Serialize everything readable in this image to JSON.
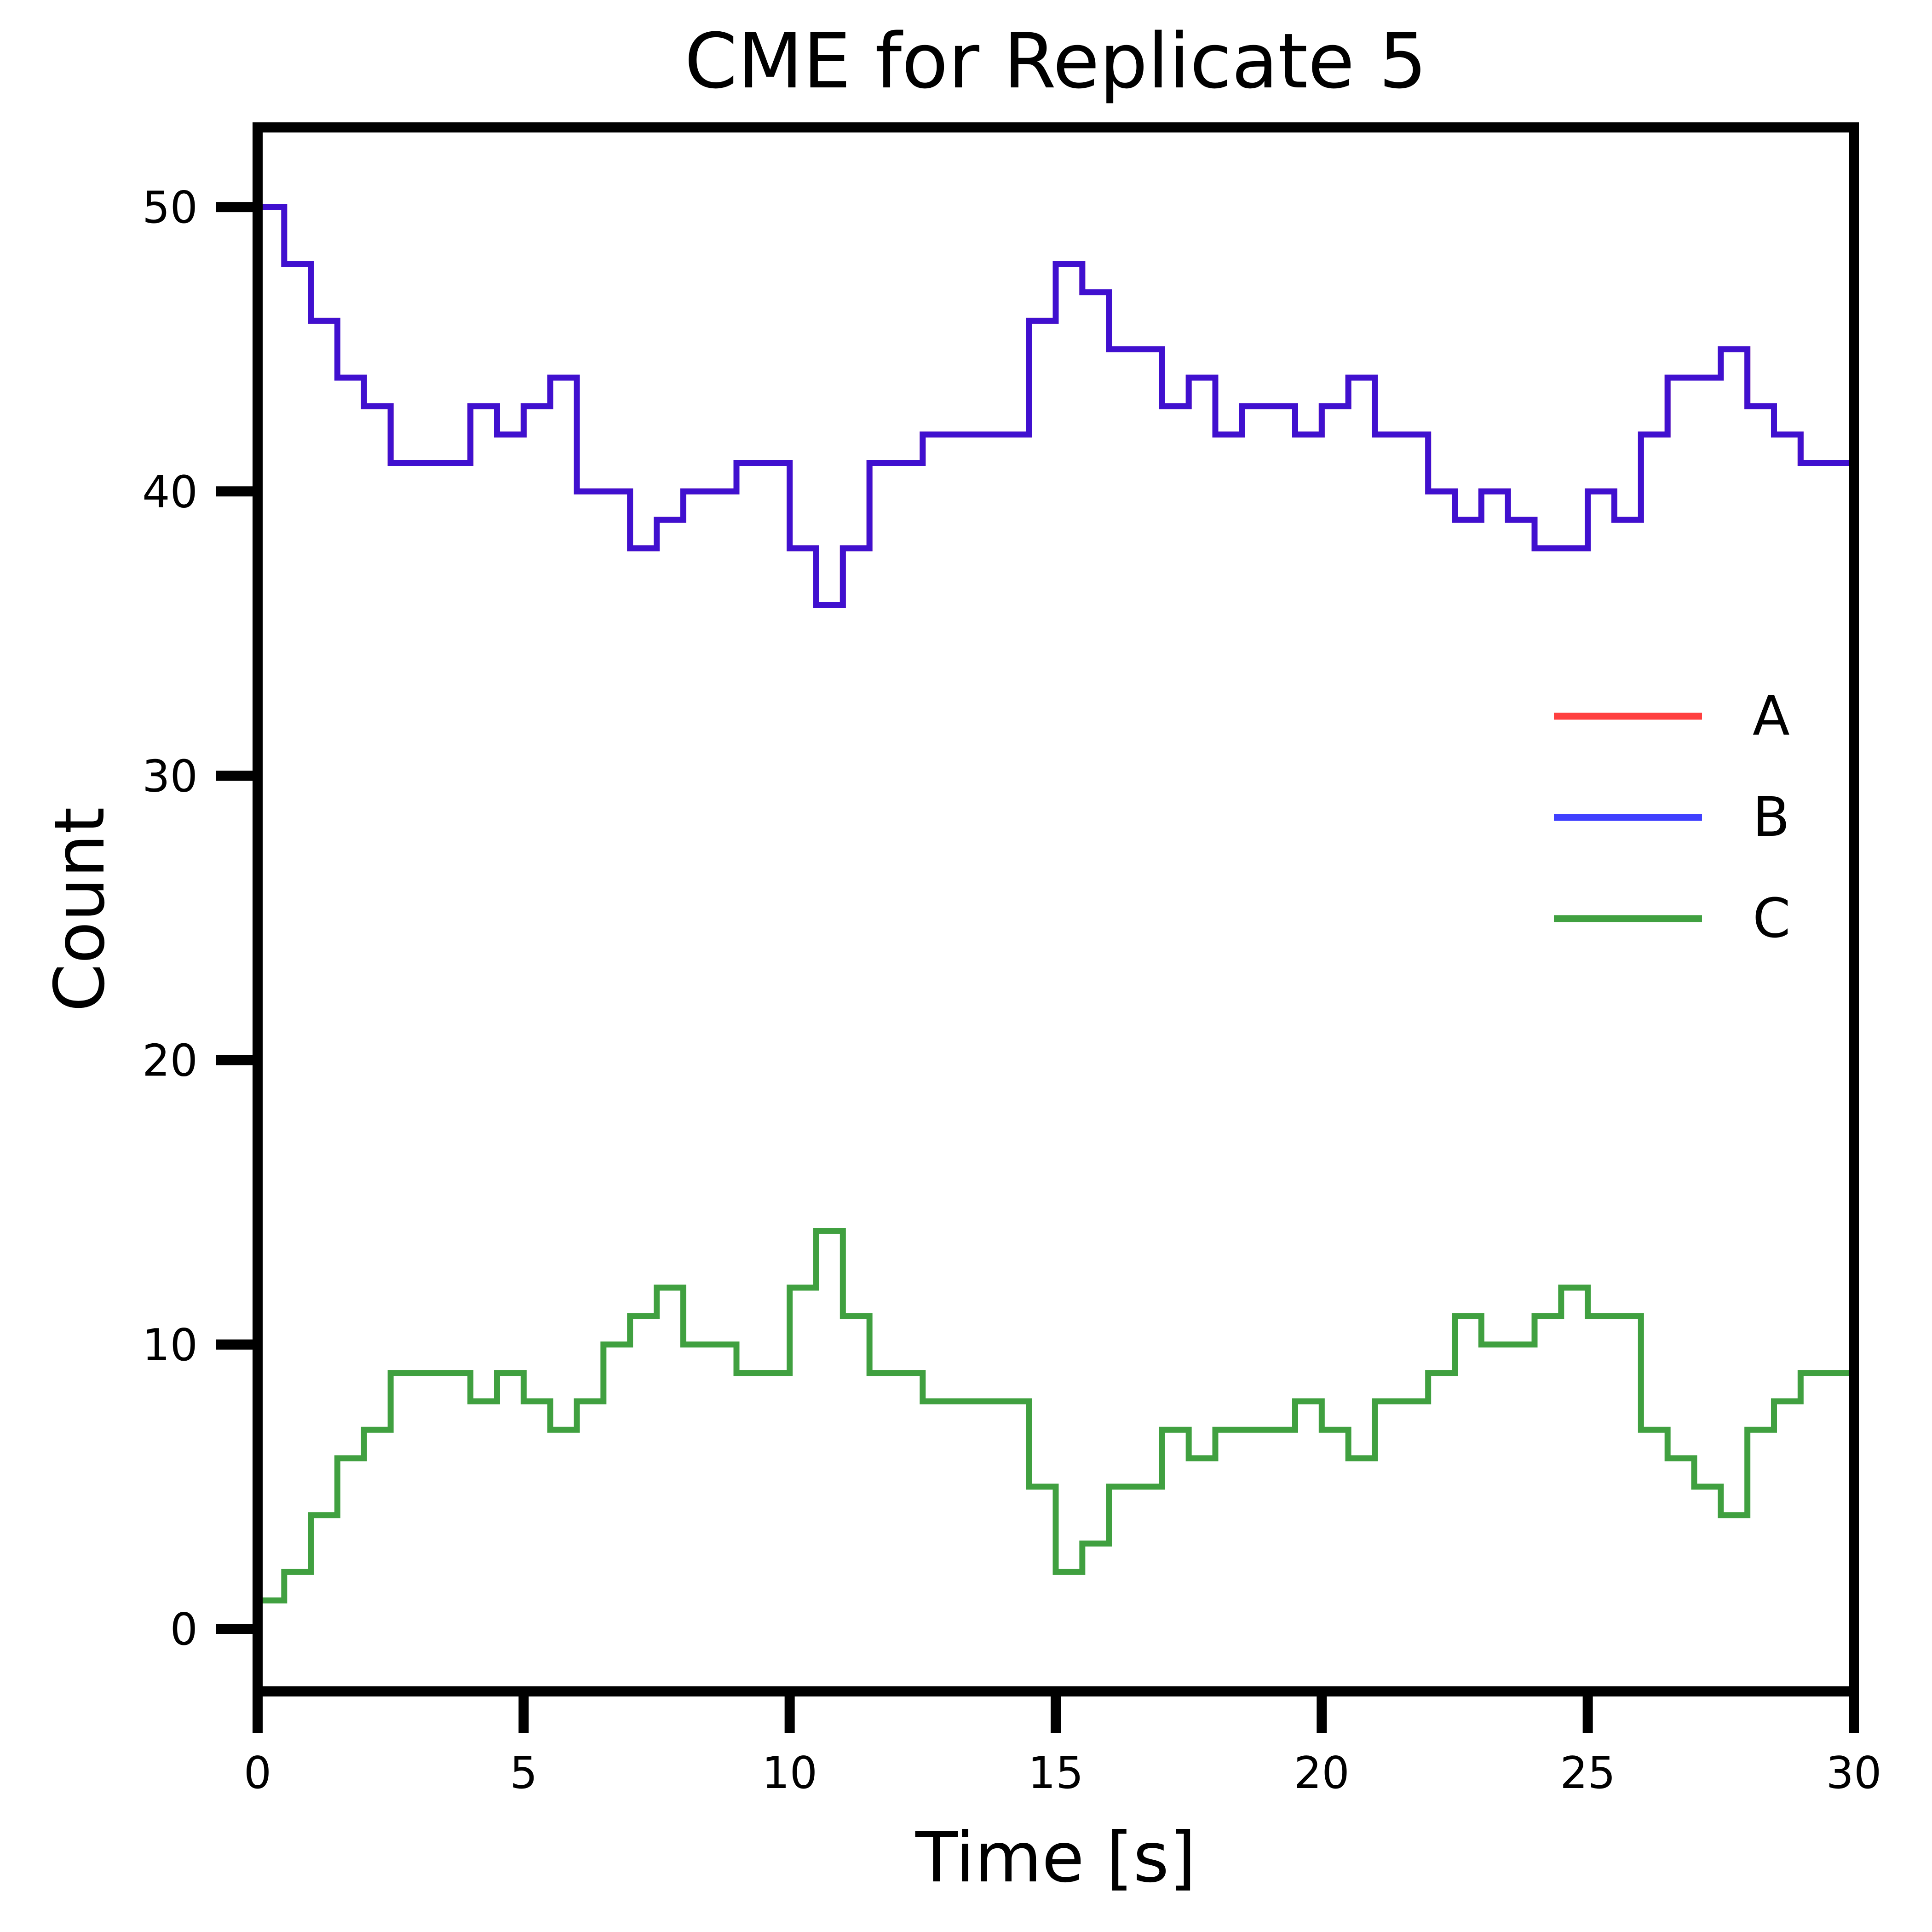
{
  "chart_data": {
    "type": "step",
    "title": "CME for Replicate 5",
    "x_label": "Time [s]",
    "y_label": "Count",
    "x": [
      0,
      0.5,
      1,
      1.5,
      2,
      2.5,
      3,
      3.5,
      4,
      4.5,
      5,
      5.5,
      6,
      6.5,
      7,
      7.5,
      8,
      8.5,
      9,
      9.5,
      10,
      10.5,
      11,
      11.5,
      12,
      12.5,
      13,
      13.5,
      14,
      14.5,
      15,
      15.5,
      16,
      16.5,
      17,
      17.5,
      18,
      18.5,
      19,
      19.5,
      20,
      20.5,
      21,
      21.5,
      22,
      22.5,
      23,
      23.5,
      24,
      24.5,
      25,
      25.5,
      26,
      26.5,
      27,
      27.5,
      28,
      28.5,
      29,
      29.5,
      30
    ],
    "series": [
      {
        "name": "A",
        "color": "#ff0000",
        "values": [
          50,
          48,
          46,
          44,
          43,
          41,
          41,
          41,
          43,
          42,
          43,
          44,
          40,
          40,
          38,
          39,
          40,
          40,
          41,
          41,
          38,
          36,
          38,
          41,
          41,
          42,
          42,
          42,
          42,
          46,
          48,
          47,
          45,
          45,
          43,
          44,
          42,
          43,
          43,
          42,
          43,
          44,
          42,
          42,
          40,
          39,
          40,
          39,
          38,
          38,
          40,
          39,
          42,
          44,
          44,
          45,
          43,
          42,
          41,
          41,
          42
        ]
      },
      {
        "name": "B",
        "color": "#0000ff",
        "values": [
          50,
          48,
          46,
          44,
          43,
          41,
          41,
          41,
          43,
          42,
          43,
          44,
          40,
          40,
          38,
          39,
          40,
          40,
          41,
          41,
          38,
          36,
          38,
          41,
          41,
          42,
          42,
          42,
          42,
          46,
          48,
          47,
          45,
          45,
          43,
          44,
          42,
          43,
          43,
          42,
          43,
          44,
          42,
          42,
          40,
          39,
          40,
          39,
          38,
          38,
          40,
          39,
          42,
          44,
          44,
          45,
          43,
          42,
          41,
          41,
          42
        ]
      },
      {
        "name": "C",
        "color": "#008000",
        "values": [
          1,
          2,
          4,
          6,
          7,
          9,
          9,
          9,
          8,
          9,
          8,
          7,
          8,
          10,
          11,
          12,
          10,
          10,
          9,
          9,
          12,
          14,
          11,
          9,
          9,
          8,
          8,
          8,
          8,
          5,
          2,
          3,
          5,
          5,
          7,
          6,
          7,
          7,
          7,
          8,
          7,
          6,
          8,
          8,
          9,
          11,
          10,
          10,
          11,
          12,
          11,
          11,
          7,
          6,
          5,
          4,
          7,
          8,
          9,
          9,
          8
        ]
      }
    ],
    "alpha": 0.75,
    "xlim": [
      0,
      30
    ],
    "ylim": [
      -2.2,
      52.8
    ],
    "xticks": [
      0,
      5,
      10,
      15,
      20,
      25,
      30
    ],
    "yticks": [
      0,
      10,
      20,
      30,
      40,
      50
    ],
    "legend": "center right"
  }
}
